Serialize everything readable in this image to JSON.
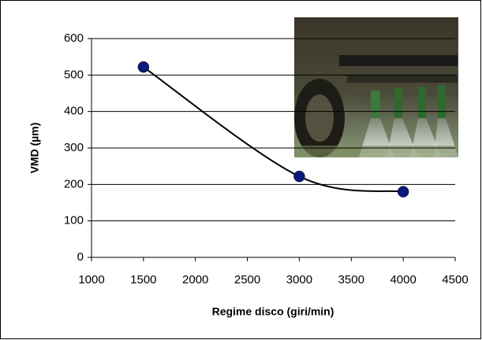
{
  "chart_data": {
    "type": "scatter",
    "x_label": "Regime disco (giri/min)",
    "y_label": "VMD (µm)",
    "x": [
      1500,
      3000,
      4000
    ],
    "series": [
      {
        "color": "#0a1a7a",
        "values": [
          522,
          222,
          180
        ]
      }
    ],
    "xlim": [
      1000,
      4500
    ],
    "xticks": [
      1000,
      1500,
      2000,
      2500,
      3000,
      3500,
      4000,
      4500
    ],
    "ylim": [
      0,
      600
    ],
    "yticks": [
      0,
      100,
      200,
      300,
      400,
      500,
      600
    ],
    "grid": true
  }
}
